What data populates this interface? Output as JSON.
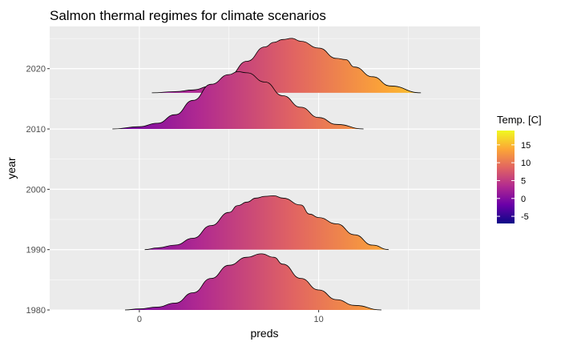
{
  "chart_data": {
    "type": "area",
    "title": "Salmon thermal regimes for climate scenarios",
    "xlabel": "preds",
    "ylabel": "year",
    "xlim": [
      -5,
      19
    ],
    "ylim": [
      1980,
      2027
    ],
    "x_ticks": [
      0,
      10
    ],
    "y_ticks": [
      1980,
      1990,
      2000,
      2010,
      2020
    ],
    "x_tick_labels": [
      "0",
      "10"
    ],
    "y_tick_labels": [
      "1980",
      "1990",
      "2000",
      "2010",
      "2020"
    ],
    "grid": true,
    "panel_background": "#ebebeb",
    "density_scale_years": 9.5,
    "series": [
      {
        "baseline": 1980,
        "x": [
          -0.8,
          0,
          1,
          2,
          3,
          4,
          5,
          6,
          6.8,
          7.5,
          8,
          9,
          10,
          11,
          12,
          13.5
        ],
        "density": [
          0,
          0.02,
          0.05,
          0.12,
          0.3,
          0.55,
          0.78,
          0.92,
          0.98,
          0.92,
          0.8,
          0.55,
          0.35,
          0.18,
          0.08,
          0
        ]
      },
      {
        "baseline": 1990,
        "x": [
          0.3,
          1,
          2,
          3,
          4,
          5,
          5.5,
          6,
          6.5,
          7,
          7.5,
          8,
          9,
          9.5,
          10,
          11,
          12,
          13,
          13.9
        ],
        "density": [
          0,
          0.03,
          0.08,
          0.2,
          0.42,
          0.65,
          0.77,
          0.83,
          0.9,
          0.93,
          0.94,
          0.9,
          0.78,
          0.62,
          0.56,
          0.45,
          0.26,
          0.08,
          0
        ]
      },
      {
        "baseline": 2010,
        "x": [
          -1.5,
          0,
          1,
          2,
          3,
          4,
          5,
          5.5,
          6,
          7,
          8,
          9,
          10,
          11,
          12.5
        ],
        "density": [
          0,
          0.04,
          0.1,
          0.25,
          0.5,
          0.78,
          0.95,
          1.0,
          0.98,
          0.82,
          0.58,
          0.38,
          0.2,
          0.08,
          0
        ]
      },
      {
        "baseline": 2016,
        "x": [
          0.7,
          2,
          3,
          4,
          5,
          6,
          7,
          7.5,
          8,
          8.5,
          9,
          10,
          11,
          11.5,
          12,
          13,
          14,
          15.7
        ],
        "density": [
          0,
          0.02,
          0.05,
          0.12,
          0.3,
          0.55,
          0.8,
          0.88,
          0.93,
          0.95,
          0.9,
          0.78,
          0.6,
          0.58,
          0.45,
          0.28,
          0.12,
          0
        ]
      }
    ],
    "legend": {
      "title": "Temp. [C]",
      "placement": "right",
      "ticks": [
        15,
        10,
        5,
        0,
        -5
      ],
      "tick_labels": [
        "15",
        "10",
        "5",
        "0",
        "-5"
      ],
      "min": -7,
      "max": 19,
      "colors": [
        "#0d0887",
        "#6a00a8",
        "#b12a90",
        "#e16462",
        "#fca636",
        "#f0f921"
      ]
    }
  }
}
